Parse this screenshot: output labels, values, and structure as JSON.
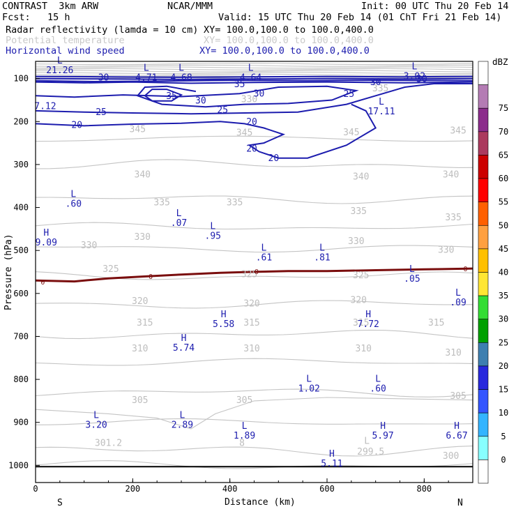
{
  "header": {
    "model": "CONTRAST  3km ARW",
    "org": "NCAR/MMM",
    "init": "Init: 00 UTC Thu 20 Feb 14",
    "fcst": "Fcst:   15 h",
    "valid": "Valid: 15 UTC Thu 20 Feb 14 (01 ChT Fri 21 Feb 14)",
    "fields": [
      {
        "name": "Radar reflectivity (lamda = 10 cm)",
        "xy": "XY= 100.0,100.0 to 100.0,400.0",
        "color": "#000000"
      },
      {
        "name": "Potential temperature",
        "xy": "XY= 100.0,100.0 to 100.0,400.0",
        "color": "#c8c8c8"
      },
      {
        "name": "Horizontal wind speed",
        "xy": "XY= 100.0,100.0 to 100.0,400.0",
        "color": "#1c1cae"
      }
    ]
  },
  "chart_data": {
    "type": "contour cross-section",
    "xlabel": "Distance (km)",
    "ylabel": "Pressure (hPa)",
    "xlim": [
      0,
      900
    ],
    "ylim": [
      1000,
      60
    ],
    "x_ticks": [
      0,
      200,
      400,
      600,
      800
    ],
    "y_ticks": [
      100,
      200,
      300,
      400,
      500,
      600,
      700,
      800,
      900,
      1000
    ],
    "x_end_labels": {
      "left": "S",
      "right": "N"
    },
    "theta_labels": [
      {
        "x": 710,
        "p": 130,
        "text": "335"
      },
      {
        "x": 440,
        "p": 155,
        "text": "330"
      },
      {
        "x": 210,
        "p": 225,
        "text": "345"
      },
      {
        "x": 430,
        "p": 233,
        "text": "345"
      },
      {
        "x": 650,
        "p": 232,
        "text": "345"
      },
      {
        "x": 870,
        "p": 228,
        "text": "345"
      },
      {
        "x": 220,
        "p": 330,
        "text": "340"
      },
      {
        "x": 670,
        "p": 335,
        "text": "340"
      },
      {
        "x": 855,
        "p": 330,
        "text": "340"
      },
      {
        "x": 260,
        "p": 395,
        "text": "335"
      },
      {
        "x": 410,
        "p": 395,
        "text": "335"
      },
      {
        "x": 665,
        "p": 415,
        "text": "335"
      },
      {
        "x": 860,
        "p": 430,
        "text": "335"
      },
      {
        "x": 220,
        "p": 475,
        "text": "330"
      },
      {
        "x": 110,
        "p": 495,
        "text": "330"
      },
      {
        "x": 660,
        "p": 485,
        "text": "330"
      },
      {
        "x": 845,
        "p": 505,
        "text": "330"
      },
      {
        "x": 155,
        "p": 550,
        "text": "325"
      },
      {
        "x": 440,
        "p": 562,
        "text": "325"
      },
      {
        "x": 670,
        "p": 565,
        "text": "325"
      },
      {
        "x": 215,
        "p": 625,
        "text": "320"
      },
      {
        "x": 445,
        "p": 630,
        "text": "320"
      },
      {
        "x": 665,
        "p": 622,
        "text": "320"
      },
      {
        "x": 225,
        "p": 675,
        "text": "315"
      },
      {
        "x": 445,
        "p": 675,
        "text": "315"
      },
      {
        "x": 670,
        "p": 675,
        "text": "315"
      },
      {
        "x": 825,
        "p": 675,
        "text": "315"
      },
      {
        "x": 215,
        "p": 735,
        "text": "310"
      },
      {
        "x": 445,
        "p": 735,
        "text": "310"
      },
      {
        "x": 675,
        "p": 735,
        "text": "310"
      },
      {
        "x": 860,
        "p": 745,
        "text": "310"
      },
      {
        "x": 215,
        "p": 855,
        "text": "305"
      },
      {
        "x": 430,
        "p": 855,
        "text": "305"
      },
      {
        "x": 870,
        "p": 845,
        "text": "305"
      },
      {
        "x": 150,
        "p": 955,
        "text": "301.2"
      },
      {
        "x": 425,
        "p": 955,
        "text": "8"
      },
      {
        "x": 690,
        "p": 975,
        "text": "299.5"
      },
      {
        "x": 855,
        "p": 985,
        "text": "300"
      },
      {
        "x": 682,
        "p": 950,
        "text": "L"
      }
    ],
    "wind_labels": [
      {
        "x": 140,
        "p": 105,
        "text": "30"
      },
      {
        "x": 420,
        "p": 120,
        "text": "35"
      },
      {
        "x": 280,
        "p": 148,
        "text": "35"
      },
      {
        "x": 340,
        "p": 158,
        "text": "30"
      },
      {
        "x": 460,
        "p": 142,
        "text": "30"
      },
      {
        "x": 645,
        "p": 143,
        "text": "25"
      },
      {
        "x": 700,
        "p": 115,
        "text": "30"
      },
      {
        "x": 795,
        "p": 108,
        "text": "30"
      },
      {
        "x": 135,
        "p": 185,
        "text": "25"
      },
      {
        "x": 385,
        "p": 180,
        "text": "25"
      },
      {
        "x": 85,
        "p": 215,
        "text": "20"
      },
      {
        "x": 445,
        "p": 208,
        "text": "20"
      },
      {
        "x": 445,
        "p": 270,
        "text": "20"
      },
      {
        "x": 490,
        "p": 292,
        "text": "20"
      }
    ],
    "extrema": [
      {
        "type": "L",
        "value": "21.26",
        "x": 50,
        "p": 75
      },
      {
        "type": "L",
        "value": "4.71",
        "x": 228,
        "p": 92
      },
      {
        "type": "L",
        "value": "4.68",
        "x": 300,
        "p": 92
      },
      {
        "type": "L",
        "value": "4.64",
        "x": 443,
        "p": 92
      },
      {
        "type": "L",
        "value": "3.02",
        "x": 780,
        "p": 88
      },
      {
        "type": "",
        "value": "7.12",
        "x": 20,
        "p": 158
      },
      {
        "type": "L",
        "value": "17.11",
        "x": 712,
        "p": 170
      },
      {
        "type": "L",
        "value": ".60",
        "x": 78,
        "p": 385
      },
      {
        "type": "L",
        "value": ".07",
        "x": 295,
        "p": 430
      },
      {
        "type": "L",
        "value": ".95",
        "x": 365,
        "p": 460
      },
      {
        "type": "H",
        "value": "9.09",
        "x": 22,
        "p": 475
      },
      {
        "type": "L",
        "value": ".61",
        "x": 470,
        "p": 510
      },
      {
        "type": "L",
        "value": ".81",
        "x": 590,
        "p": 510
      },
      {
        "type": "L",
        "value": ".05",
        "x": 775,
        "p": 560
      },
      {
        "type": "L",
        "value": ".09",
        "x": 870,
        "p": 615
      },
      {
        "type": "H",
        "value": "5.58",
        "x": 387,
        "p": 665
      },
      {
        "type": "H",
        "value": "7.72",
        "x": 685,
        "p": 665
      },
      {
        "type": "H",
        "value": "5.74",
        "x": 305,
        "p": 720
      },
      {
        "type": "L",
        "value": "1.02",
        "x": 563,
        "p": 815
      },
      {
        "type": "L",
        "value": ".60",
        "x": 705,
        "p": 815
      },
      {
        "type": "L",
        "value": "3.20",
        "x": 125,
        "p": 900
      },
      {
        "type": "L",
        "value": "2.89",
        "x": 302,
        "p": 900
      },
      {
        "type": "L",
        "value": "1.89",
        "x": 430,
        "p": 925
      },
      {
        "type": "H",
        "value": "5.97",
        "x": 715,
        "p": 925
      },
      {
        "type": "H",
        "value": "6.67",
        "x": 867,
        "p": 925
      },
      {
        "type": "H",
        "value": "5.11",
        "x": 610,
        "p": 990
      }
    ],
    "zero_labels": [
      {
        "x": 15,
        "p": 573,
        "text": "0"
      },
      {
        "x": 237,
        "p": 560,
        "text": "0"
      },
      {
        "x": 455,
        "p": 548,
        "text": "0"
      },
      {
        "x": 885,
        "p": 542,
        "text": "0"
      }
    ]
  },
  "colorbar": {
    "unit": "dBZ",
    "levels": [
      "0",
      "5",
      "10",
      "15",
      "20",
      "25",
      "30",
      "35",
      "40",
      "45",
      "50",
      "55",
      "60",
      "65",
      "70",
      "75"
    ],
    "colors": [
      "#ffffff",
      "#88ffff",
      "#33b4ff",
      "#3355ff",
      "#2828dd",
      "#3e7fb0",
      "#00a000",
      "#33dd33",
      "#ffe633",
      "#ffc000",
      "#ffa040",
      "#ff6000",
      "#ff0000",
      "#cc0000",
      "#ab3a5e",
      "#8c2c8c",
      "#b47cb4",
      "#ffffff"
    ]
  }
}
